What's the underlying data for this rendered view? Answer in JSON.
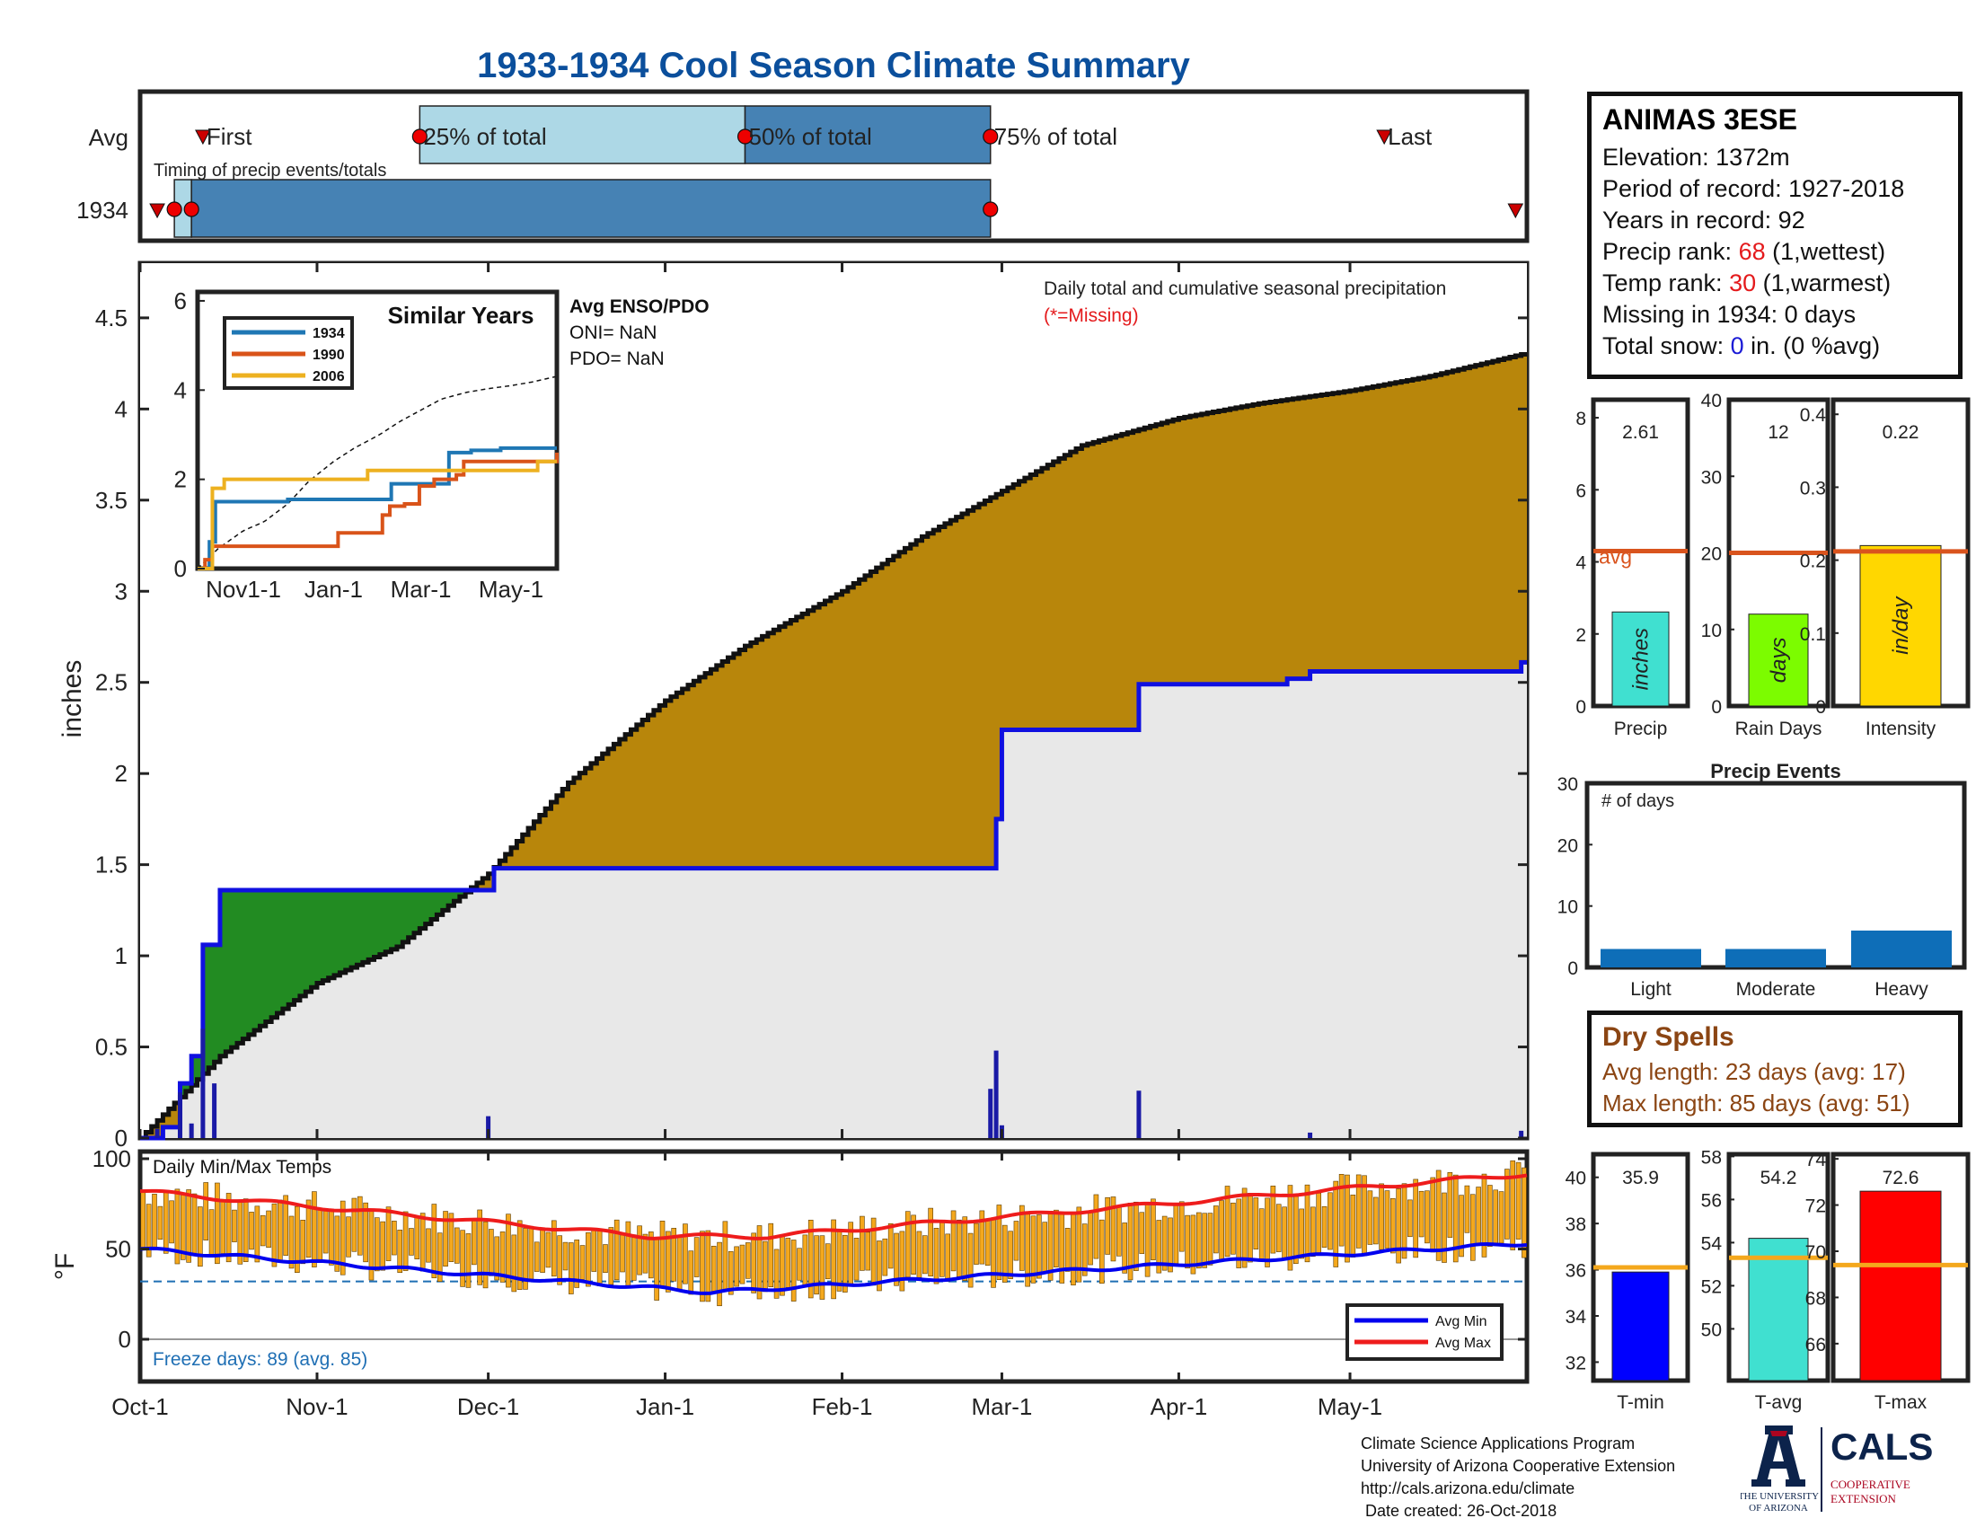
{
  "title": "1933-1934 Cool Season Climate Summary",
  "colors": {
    "title": "#0b4f9c",
    "cum": "#b8860b",
    "below": "#228b22",
    "avg_line": "#1010e0",
    "bg_fill": "#e8e8e8",
    "orange": "#f4a81d",
    "red": "#ee1c1c",
    "blue": "#0000ee",
    "avg_bar": "#d9541e"
  },
  "timing": {
    "row_labels": [
      "Avg",
      "1934"
    ],
    "avg_labels": [
      "First",
      "25% of total",
      "50% of total",
      "75% of total",
      "Last"
    ],
    "subtitle": "Timing of precip events/totals"
  },
  "main": {
    "ylabel": "inches",
    "caption": "Daily total and cumulative seasonal precipitation",
    "missing_note": "(*=Missing)",
    "enso": {
      "head": "Avg ENSO/PDO",
      "oni": "ONI= NaN",
      "pdo": "PDO= NaN"
    }
  },
  "inset": {
    "title": "Similar Years",
    "legend": [
      "1934",
      "1990",
      "2006"
    ],
    "series_colors": [
      "#1f77b4",
      "#d95319",
      "#edb120"
    ],
    "xticks": [
      "Nov1-1",
      "Jan-1",
      "Mar-1",
      "May-1"
    ],
    "yticks": [
      "0",
      "2",
      "4",
      "6"
    ]
  },
  "temps": {
    "label": "Daily Min/Max Temps",
    "ylabel": "°F",
    "freeze": "Freeze days: 89 (avg. 85)",
    "legend": [
      "Avg Min",
      "Avg Max"
    ],
    "yticks": [
      "0",
      "50",
      "100"
    ]
  },
  "xaxis": {
    "ticks": [
      "Oct-1",
      "Nov-1",
      "Dec-1",
      "Jan-1",
      "Feb-1",
      "Mar-1",
      "Apr-1",
      "May-1"
    ]
  },
  "station": {
    "name": "ANIMAS 3ESE",
    "elevation": "Elevation: 1372m",
    "period": "Period of record: 1927-2018",
    "years": "Years in record: 92",
    "precip_rank_pre": "Precip rank: ",
    "precip_rank_val": "68",
    "precip_rank_post": " (1,wettest)",
    "temp_rank_pre": "Temp rank: ",
    "temp_rank_val": "30",
    "temp_rank_post": " (1,warmest)",
    "missing": "Missing in 1934: 0 days",
    "snow_pre": "Total snow: ",
    "snow_val": "0",
    "snow_post": " in. (0 %avg)"
  },
  "small_bars": [
    {
      "value_text": "2.61",
      "label": "Precip",
      "unit": "inches",
      "value": 2.61,
      "avg": 4.3,
      "ylim": [
        0,
        8.5
      ],
      "yticks": [
        "0",
        "2",
        "4",
        "6",
        "8"
      ],
      "color": "#40e0d0",
      "avg_label": "avg"
    },
    {
      "value_text": "12",
      "label": "Rain Days",
      "unit": "days",
      "value": 12,
      "avg": 20,
      "ylim": [
        0,
        40
      ],
      "yticks": [
        "0",
        "10",
        "20",
        "30",
        "40"
      ],
      "color": "#7cfc00",
      "avg_label": ""
    },
    {
      "value_text": "0.22",
      "label": "Intensity",
      "unit": "in/day",
      "value": 0.22,
      "avg": 0.212,
      "ylim": [
        0,
        0.42
      ],
      "yticks": [
        "0",
        "0.1",
        "0.2",
        "0.3",
        "0.4"
      ],
      "color": "#ffd700",
      "avg_label": ""
    }
  ],
  "events": {
    "title": "Precip Events",
    "ylabel": "# of days",
    "categories": [
      "Light",
      "Moderate",
      "Heavy"
    ],
    "values": [
      3,
      3,
      6
    ],
    "yticks": [
      "0",
      "10",
      "20",
      "30"
    ]
  },
  "dry_spells": {
    "title": "Dry Spells",
    "avg": "Avg length: 23 days (avg: 17)",
    "max": "Max length: 85 days (avg: 51)"
  },
  "temp_bars": [
    {
      "value_text": "35.9",
      "label": "T-min",
      "value": 35.9,
      "avg": 36.1,
      "ylim": [
        31.2,
        41
      ],
      "yticks": [
        "32",
        "34",
        "36",
        "38",
        "40"
      ],
      "color": "#0000ff"
    },
    {
      "value_text": "54.2",
      "label": "T-avg",
      "value": 54.2,
      "avg": 53.3,
      "ylim": [
        47.6,
        58.1
      ],
      "yticks": [
        "50",
        "52",
        "54",
        "56",
        "58"
      ],
      "color": "#40e0d0"
    },
    {
      "value_text": "72.6",
      "label": "T-max",
      "value": 72.6,
      "avg": 69.4,
      "ylim": [
        64.4,
        74.2
      ],
      "yticks": [
        "66",
        "68",
        "70",
        "72",
        "74"
      ],
      "color": "#ff0000"
    }
  ],
  "footer": [
    "Climate Science Applications Program",
    "University of Arizona Cooperative Extension",
    "http://cals.arizona.edu/climate",
    " Date created: 26-Oct-2018"
  ],
  "logo": {
    "ua1": "THE UNIVERSITY",
    "ua2": "OF ARIZONA",
    "cals": "CALS",
    "ext1": "COOPERATIVE",
    "ext2": "EXTENSION"
  },
  "chart_data": {
    "type": "area",
    "title": "1933-1934 Cool Season Climate Summary",
    "ylabel": "inches",
    "ylim": [
      0,
      4.8
    ],
    "x_range": [
      "Oct-1",
      "May-31"
    ],
    "series": [
      {
        "name": "1934 cumulative",
        "x": [
          "Oct-1",
          "Oct-5",
          "Oct-8",
          "Oct-10",
          "Oct-12",
          "Oct-15",
          "Nov-30",
          "Dec-2",
          "Feb-27",
          "Feb-28",
          "Mar-1",
          "Mar-25",
          "Apr-20",
          "Apr-24",
          "May-31"
        ],
        "values": [
          0,
          0.06,
          0.3,
          0.45,
          1.06,
          1.36,
          1.36,
          1.48,
          1.48,
          1.75,
          2.24,
          2.49,
          2.52,
          2.56,
          2.61
        ]
      },
      {
        "name": "Avg cumulative",
        "x": [
          "Oct-1",
          "Oct-15",
          "Nov-1",
          "Nov-15",
          "Dec-1",
          "Dec-15",
          "Jan-1",
          "Jan-15",
          "Feb-1",
          "Feb-15",
          "Mar-1",
          "Mar-15",
          "Apr-1",
          "Apr-15",
          "May-1",
          "May-15",
          "May-31"
        ],
        "values": [
          0,
          0.45,
          0.85,
          1.05,
          1.45,
          1.95,
          2.4,
          2.7,
          3.0,
          3.3,
          3.55,
          3.8,
          3.95,
          4.03,
          4.1,
          4.18,
          4.3
        ]
      },
      {
        "name": "Daily precip",
        "x": [
          "Oct-4",
          "Oct-8",
          "Oct-10",
          "Oct-12",
          "Oct-14",
          "Dec-1",
          "Feb-27",
          "Feb-28",
          "Mar-1",
          "Mar-25",
          "Apr-24",
          "May-31"
        ],
        "values": [
          0.05,
          0.25,
          0.08,
          0.6,
          0.3,
          0.12,
          0.27,
          0.48,
          0.07,
          0.26,
          0.03,
          0.04
        ]
      }
    ]
  }
}
